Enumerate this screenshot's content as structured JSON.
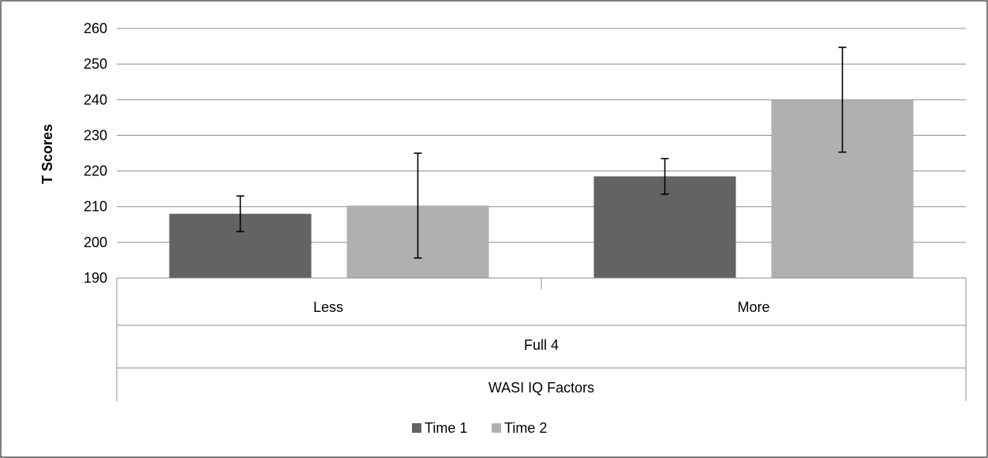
{
  "chart_data": {
    "type": "bar",
    "ylabel": "T Scores",
    "ylim": [
      190,
      260
    ],
    "yticks": [
      190,
      200,
      210,
      220,
      230,
      240,
      250,
      260
    ],
    "grid": true,
    "legend_position": "bottom",
    "categories": [
      "Less",
      "More"
    ],
    "group_label": "Full 4",
    "xlabel": "WASI IQ Factors",
    "series": [
      {
        "name": "Time 1",
        "color": "#636363",
        "values": [
          208,
          218.5
        ],
        "error": [
          5,
          5
        ]
      },
      {
        "name": "Time 2",
        "color": "#b0b0b0",
        "values": [
          210.3,
          240
        ],
        "error": [
          14.7,
          14.7
        ]
      }
    ]
  }
}
